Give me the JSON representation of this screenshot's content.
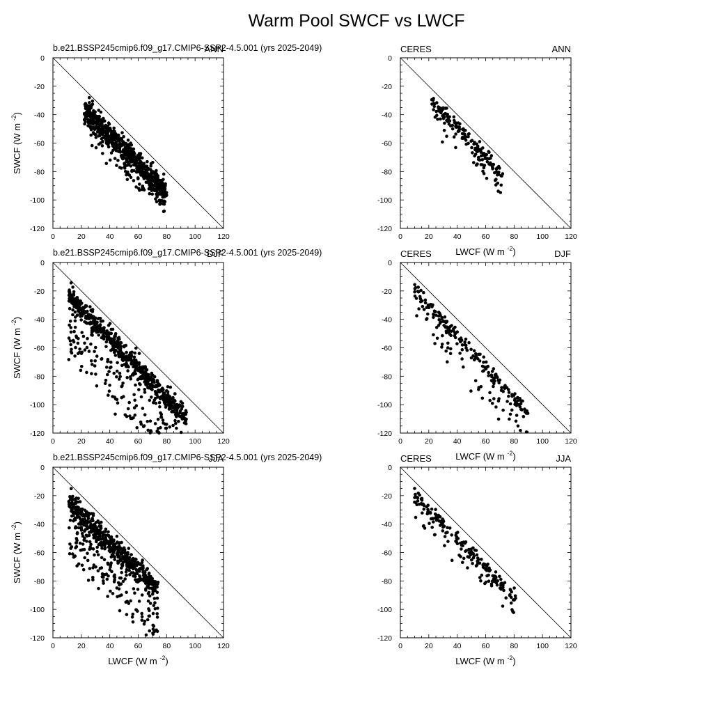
{
  "figure": {
    "title": "Warm Pool SWCF vs LWCF",
    "model_label": "b.e21.BSSP245cmip6.f09_g17.CMIP6-SSP2-4.5.001 (yrs 2025-2049)",
    "obs_label": "CERES",
    "ylabel": "SWCF (W m",
    "xlabel": "LWCF (W m",
    "unit_exponent": "-2",
    "unit_close": ")",
    "colors": {
      "axes": "#000000",
      "points": "#000000",
      "background": "#ffffff"
    }
  },
  "chart_data": [
    {
      "type": "scatter",
      "dataset": "model",
      "season": "ANN",
      "xlim": [
        0,
        120
      ],
      "ylim": [
        -120,
        0
      ],
      "xticks": [
        0,
        20,
        40,
        60,
        80,
        100,
        120
      ],
      "yticks": [
        0,
        -20,
        -40,
        -60,
        -80,
        -100,
        -120
      ],
      "reference_line": [
        [
          0,
          0
        ],
        [
          120,
          -120
        ]
      ],
      "cluster": {
        "x_range": [
          22,
          80
        ],
        "slope": -1.02,
        "intercept": -13,
        "spread": 8,
        "lower_tail": 14,
        "count": 700
      }
    },
    {
      "type": "scatter",
      "dataset": "observations",
      "season": "ANN",
      "xlim": [
        0,
        120
      ],
      "ylim": [
        -120,
        0
      ],
      "xticks": [
        0,
        20,
        40,
        60,
        80,
        100,
        120
      ],
      "yticks": [
        0,
        -20,
        -40,
        -60,
        -80,
        -100,
        -120
      ],
      "reference_line": [
        [
          0,
          0
        ],
        [
          120,
          -120
        ]
      ],
      "cluster": {
        "x_range": [
          22,
          72
        ],
        "slope": -1.05,
        "intercept": -7,
        "spread": 5,
        "lower_tail": 16,
        "count": 180
      }
    },
    {
      "type": "scatter",
      "dataset": "model",
      "season": "DJF",
      "xlim": [
        0,
        120
      ],
      "ylim": [
        -120,
        0
      ],
      "xticks": [
        0,
        20,
        40,
        60,
        80,
        100,
        120
      ],
      "yticks": [
        0,
        -20,
        -40,
        -60,
        -80,
        -100,
        -120
      ],
      "reference_line": [
        [
          0,
          0
        ],
        [
          120,
          -120
        ]
      ],
      "cluster": {
        "x_range": [
          11,
          94
        ],
        "slope": -1.05,
        "intercept": -11,
        "spread": 7,
        "lower_tail": 42,
        "count": 800
      }
    },
    {
      "type": "scatter",
      "dataset": "observations",
      "season": "DJF",
      "xlim": [
        0,
        120
      ],
      "ylim": [
        -120,
        0
      ],
      "xticks": [
        0,
        20,
        40,
        60,
        80,
        100,
        120
      ],
      "yticks": [
        0,
        -20,
        -40,
        -60,
        -80,
        -100,
        -120
      ],
      "reference_line": [
        [
          0,
          0
        ],
        [
          120,
          -120
        ]
      ],
      "cluster": {
        "x_range": [
          10,
          90
        ],
        "slope": -1.1,
        "intercept": -8,
        "spread": 7,
        "lower_tail": 28,
        "count": 220
      }
    },
    {
      "type": "scatter",
      "dataset": "model",
      "season": "JJA",
      "xlim": [
        0,
        120
      ],
      "ylim": [
        -120,
        0
      ],
      "xticks": [
        0,
        20,
        40,
        60,
        80,
        100,
        120
      ],
      "yticks": [
        0,
        -20,
        -40,
        -60,
        -80,
        -100,
        -120
      ],
      "reference_line": [
        [
          0,
          0
        ],
        [
          120,
          -120
        ]
      ],
      "cluster": {
        "x_range": [
          11,
          74
        ],
        "slope": -0.95,
        "intercept": -15,
        "spread": 8,
        "lower_tail": 38,
        "count": 650
      }
    },
    {
      "type": "scatter",
      "dataset": "observations",
      "season": "JJA",
      "xlim": [
        0,
        120
      ],
      "ylim": [
        -120,
        0
      ],
      "xticks": [
        0,
        20,
        40,
        60,
        80,
        100,
        120
      ],
      "yticks": [
        0,
        -20,
        -40,
        -60,
        -80,
        -100,
        -120
      ],
      "reference_line": [
        [
          0,
          0
        ],
        [
          120,
          -120
        ]
      ],
      "cluster": {
        "x_range": [
          10,
          82
        ],
        "slope": -1.03,
        "intercept": -9,
        "spread": 5,
        "lower_tail": 16,
        "count": 200
      }
    }
  ]
}
